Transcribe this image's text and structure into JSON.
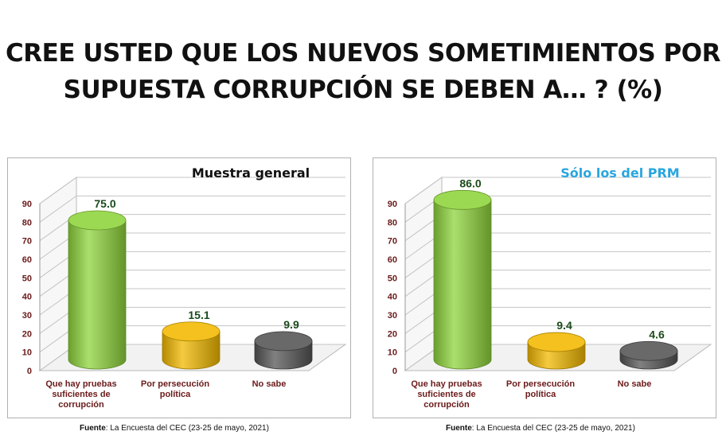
{
  "title_line1": "CREE USTED QUE LOS NUEVOS SOMETIMIENTOS POR",
  "title_line2": "SUPUESTA CORRUPCIÓN SE DEBEN A… ? (%)",
  "source_label": "Fuente",
  "source_text": ": La Encuesta del CEC (23-25 de mayo, 2021)",
  "chart_data": [
    {
      "type": "bar",
      "title": "Muestra general",
      "title_color": "#111111",
      "categories": [
        "Que hay pruebas suficientes de corrupción",
        "Por persecución política",
        "No sabe"
      ],
      "category_lines": [
        [
          "Que hay pruebas",
          "suficientes de",
          "corrupción"
        ],
        [
          "Por persecución",
          "política"
        ],
        [
          "No sabe"
        ]
      ],
      "values": [
        75.0,
        15.1,
        9.9
      ],
      "value_labels": [
        "75.0",
        "15.1",
        "9.9"
      ],
      "colors": [
        "#8fd43c",
        "#f2b800",
        "#555555"
      ],
      "ylim": [
        0,
        90
      ],
      "yticks": [
        0,
        10,
        20,
        30,
        40,
        50,
        60,
        70,
        80,
        90
      ],
      "grid": true,
      "three_d": true
    },
    {
      "type": "bar",
      "title": "Sólo los del PRM",
      "title_color": "#29a6e0",
      "categories": [
        "Que hay pruebas suficientes de corrupción",
        "Por persecución política",
        "No sabe"
      ],
      "category_lines": [
        [
          "Que hay pruebas",
          "suficientes de",
          "corrupción"
        ],
        [
          "Por persecución",
          "política"
        ],
        [
          "No sabe"
        ]
      ],
      "values": [
        86.0,
        9.4,
        4.6
      ],
      "value_labels": [
        "86.0",
        "9.4",
        "4.6"
      ],
      "colors": [
        "#8fd43c",
        "#f2b800",
        "#555555"
      ],
      "ylim": [
        0,
        90
      ],
      "yticks": [
        0,
        10,
        20,
        30,
        40,
        50,
        60,
        70,
        80,
        90
      ],
      "grid": true,
      "three_d": true
    }
  ]
}
